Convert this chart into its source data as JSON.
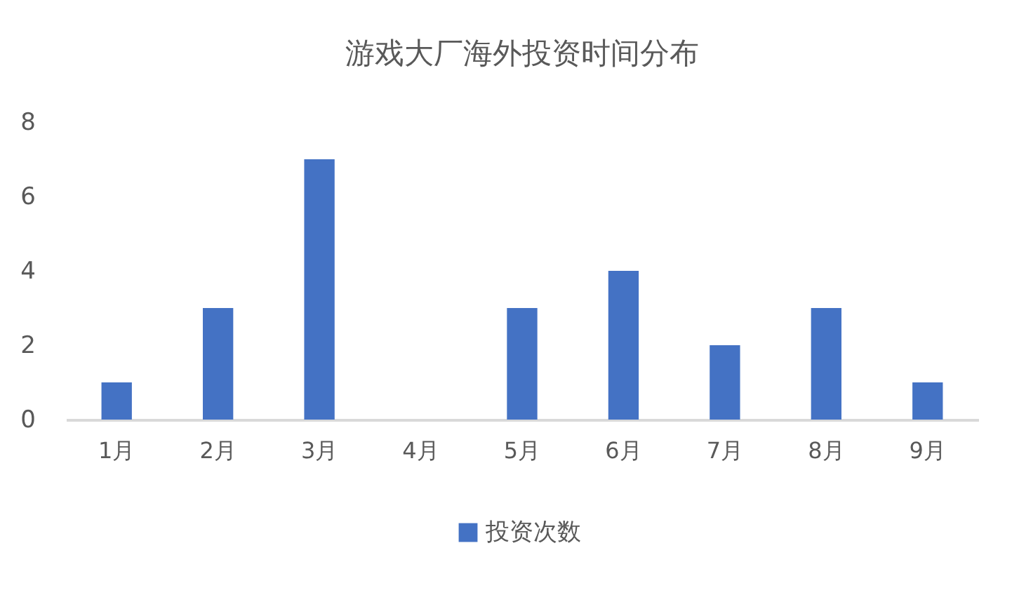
{
  "chart_data": {
    "type": "bar",
    "title": "游戏大厂海外投资时间分布",
    "categories": [
      "1月",
      "2月",
      "3月",
      "4月",
      "5月",
      "6月",
      "7月",
      "8月",
      "9月"
    ],
    "series": [
      {
        "name": "投资次数",
        "color": "#4472c4",
        "values": [
          1,
          3,
          7,
          0,
          3,
          4,
          2,
          3,
          1
        ]
      }
    ],
    "ylim": [
      0,
      8
    ],
    "yticks": [
      0,
      2,
      4,
      6,
      8
    ],
    "grid": false,
    "legend": "bottom"
  }
}
